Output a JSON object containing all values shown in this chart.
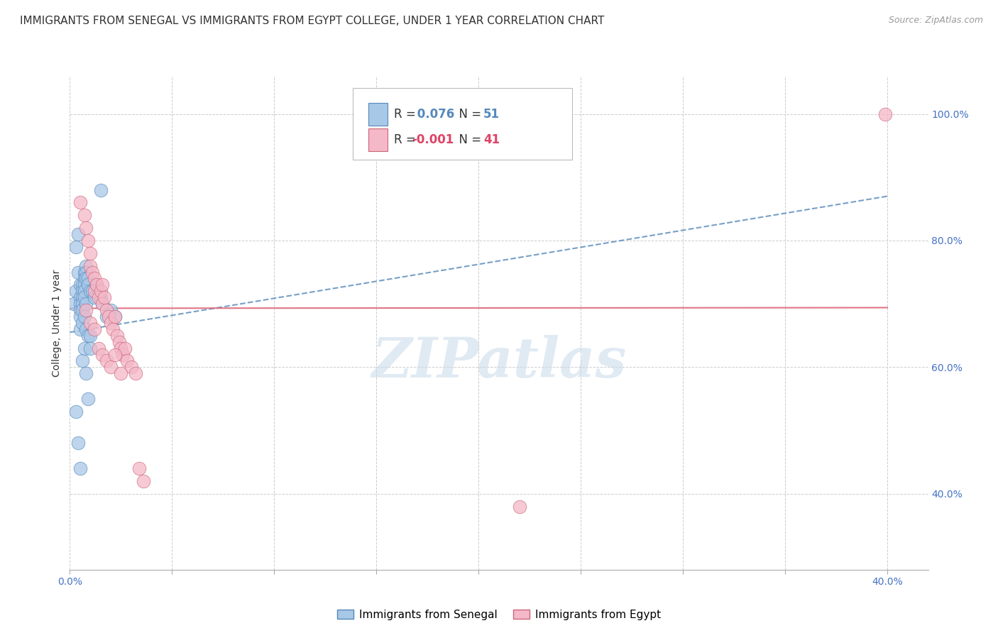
{
  "title": "IMMIGRANTS FROM SENEGAL VS IMMIGRANTS FROM EGYPT COLLEGE, UNDER 1 YEAR CORRELATION CHART",
  "source": "Source: ZipAtlas.com",
  "ylabel": "College, Under 1 year",
  "legend_label_blue": "Immigrants from Senegal",
  "legend_label_pink": "Immigrants from Egypt",
  "R_blue": 0.076,
  "N_blue": 51,
  "R_pink": -0.001,
  "N_pink": 41,
  "xlim": [
    0.0,
    0.42
  ],
  "ylim": [
    0.28,
    1.06
  ],
  "xticks": [
    0.0,
    0.05,
    0.1,
    0.15,
    0.2,
    0.25,
    0.3,
    0.35,
    0.4
  ],
  "yticks_right": [
    0.4,
    0.6,
    0.8,
    1.0
  ],
  "ytick_right_labels": [
    "40.0%",
    "60.0%",
    "80.0%",
    "100.0%"
  ],
  "xtick_labels_bottom": [
    "0.0%",
    "",
    "",
    "",
    "",
    "",
    "",
    "",
    "40.0%"
  ],
  "color_blue": "#a8c8e8",
  "color_pink": "#f4b8c8",
  "trendline_blue_color": "#5588bb",
  "trendline_pink_color": "#dd6677",
  "watermark": "ZIPatlas",
  "blue_points_x": [
    0.002,
    0.003,
    0.003,
    0.004,
    0.004,
    0.005,
    0.005,
    0.005,
    0.005,
    0.005,
    0.005,
    0.006,
    0.006,
    0.006,
    0.006,
    0.006,
    0.006,
    0.007,
    0.007,
    0.007,
    0.007,
    0.007,
    0.007,
    0.008,
    0.008,
    0.008,
    0.008,
    0.008,
    0.009,
    0.009,
    0.009,
    0.01,
    0.01,
    0.011,
    0.012,
    0.013,
    0.014,
    0.015,
    0.016,
    0.018,
    0.02,
    0.022,
    0.003,
    0.004,
    0.005,
    0.006,
    0.007,
    0.008,
    0.009,
    0.01,
    0.015
  ],
  "blue_points_y": [
    0.7,
    0.72,
    0.79,
    0.81,
    0.75,
    0.73,
    0.71,
    0.7,
    0.69,
    0.68,
    0.66,
    0.73,
    0.72,
    0.71,
    0.7,
    0.69,
    0.67,
    0.75,
    0.74,
    0.73,
    0.72,
    0.71,
    0.68,
    0.76,
    0.75,
    0.74,
    0.7,
    0.66,
    0.74,
    0.73,
    0.65,
    0.72,
    0.65,
    0.72,
    0.71,
    0.73,
    0.72,
    0.71,
    0.7,
    0.68,
    0.69,
    0.68,
    0.53,
    0.48,
    0.44,
    0.61,
    0.63,
    0.59,
    0.55,
    0.63,
    0.88
  ],
  "pink_points_x": [
    0.005,
    0.007,
    0.008,
    0.009,
    0.01,
    0.01,
    0.011,
    0.012,
    0.012,
    0.013,
    0.014,
    0.015,
    0.016,
    0.016,
    0.017,
    0.018,
    0.019,
    0.02,
    0.021,
    0.022,
    0.023,
    0.024,
    0.025,
    0.026,
    0.027,
    0.028,
    0.03,
    0.032,
    0.034,
    0.036,
    0.008,
    0.01,
    0.012,
    0.014,
    0.016,
    0.018,
    0.02,
    0.022,
    0.025,
    0.22,
    0.399
  ],
  "pink_points_y": [
    0.86,
    0.84,
    0.82,
    0.8,
    0.78,
    0.76,
    0.75,
    0.74,
    0.72,
    0.73,
    0.71,
    0.72,
    0.73,
    0.7,
    0.71,
    0.69,
    0.68,
    0.67,
    0.66,
    0.68,
    0.65,
    0.64,
    0.63,
    0.62,
    0.63,
    0.61,
    0.6,
    0.59,
    0.44,
    0.42,
    0.69,
    0.67,
    0.66,
    0.63,
    0.62,
    0.61,
    0.6,
    0.62,
    0.59,
    0.38,
    1.0
  ],
  "grid_color": "#cccccc",
  "background_color": "#ffffff",
  "title_fontsize": 11,
  "axis_label_fontsize": 10,
  "tick_fontsize": 10,
  "blue_trend_x0": 0.0,
  "blue_trend_y0": 0.655,
  "blue_trend_x1": 0.4,
  "blue_trend_y1": 0.87,
  "pink_trend_x0": 0.0,
  "pink_trend_y0": 0.693,
  "pink_trend_x1": 0.4,
  "pink_trend_y1": 0.694
}
